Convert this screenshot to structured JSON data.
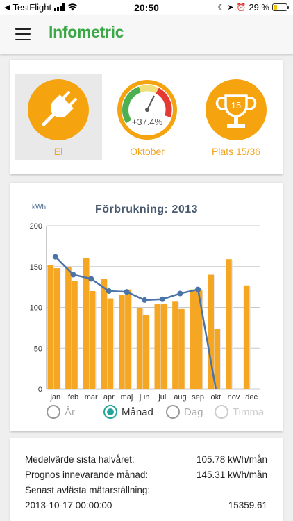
{
  "status_bar": {
    "back_app": "TestFlight",
    "time": "20:50",
    "battery": "29 %",
    "battery_level": 0.29,
    "signal_bars": 4
  },
  "app_bar": {
    "menu_icon": "hamburger-icon",
    "title": "Infometric"
  },
  "summary": {
    "tiles": [
      {
        "label": "El",
        "icon": "plug-icon",
        "selected": true
      },
      {
        "label": "Oktober",
        "icon": "gauge-icon",
        "gauge_value": "+37.4%",
        "gauge_level": 0.52
      },
      {
        "label": "Plats 15/36",
        "icon": "trophy-icon",
        "trophy_value": "15"
      }
    ],
    "colors": {
      "accent": "#f5a30f",
      "gauge_green": "#4caf50",
      "gauge_yellow": "#f0e07a",
      "gauge_red": "#e53935"
    }
  },
  "chart_data": {
    "type": "bar",
    "title": "Förbrukning: 2013",
    "unit": "kWh",
    "ylabel": "kWh",
    "ylim": [
      0,
      200
    ],
    "yticks": [
      0,
      50,
      100,
      150,
      200
    ],
    "grid": true,
    "categories": [
      "jan",
      "feb",
      "mar",
      "apr",
      "maj",
      "jun",
      "jul",
      "aug",
      "sep",
      "okt",
      "nov",
      "dec"
    ],
    "series": [
      {
        "values": [
          152,
          149,
          160,
          135,
          115,
          99,
          104,
          107,
          122,
          140,
          159,
          127
        ],
        "color": "#f5a623"
      },
      {
        "values": [
          148,
          132,
          120,
          111,
          122,
          91,
          104,
          98,
          121,
          74,
          null,
          null
        ],
        "color": "#f5a623"
      }
    ],
    "line": {
      "values": [
        162,
        140,
        135,
        120,
        119,
        109,
        110,
        117,
        122,
        0
      ],
      "color": "#4a73a8"
    }
  },
  "period_selector": {
    "options": [
      {
        "label": "År",
        "checked": false,
        "state": "dim"
      },
      {
        "label": "Månad",
        "checked": true,
        "state": "normal"
      },
      {
        "label": "Dag",
        "checked": false,
        "state": "dim"
      },
      {
        "label": "Timma",
        "checked": false,
        "state": "faint"
      }
    ]
  },
  "info": {
    "rows": [
      {
        "label": "Medelvärde sista halvåret:",
        "value": "105.78 kWh/mån"
      },
      {
        "label": "Prognos innevarande månad:",
        "value": "145.31 kWh/mån"
      },
      {
        "label": "Senast avlästa mätarställning:",
        "value": ""
      },
      {
        "label": "2013-10-17 00:00:00",
        "value": "15359.61"
      }
    ]
  }
}
